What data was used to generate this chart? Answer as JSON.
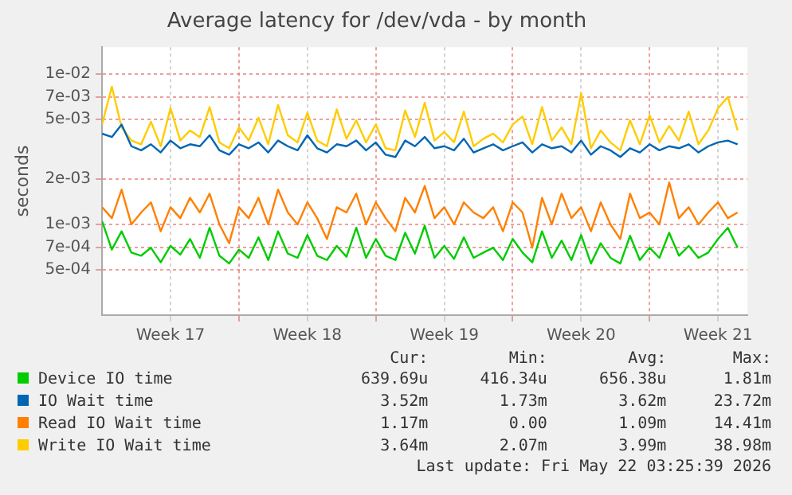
{
  "chart_data": {
    "type": "line",
    "title": "Average latency for /dev/vda - by month",
    "ylabel": "seconds",
    "x": [
      "2026-04-20T00:00",
      "2026-04-20T12:00",
      "2026-04-21T00:00",
      "2026-04-21T12:00",
      "2026-04-22T00:00",
      "2026-04-22T12:00",
      "2026-04-23T00:00",
      "2026-04-23T12:00",
      "2026-04-24T00:00",
      "2026-04-24T12:00",
      "2026-04-25T00:00",
      "2026-04-25T12:00",
      "2026-04-26T00:00",
      "2026-04-26T12:00",
      "2026-04-27T00:00",
      "2026-04-27T12:00",
      "2026-04-28T00:00",
      "2026-04-28T12:00",
      "2026-04-29T00:00",
      "2026-04-29T12:00",
      "2026-04-30T00:00",
      "2026-04-30T12:00",
      "2026-05-01T00:00",
      "2026-05-01T12:00",
      "2026-05-02T00:00",
      "2026-05-02T12:00",
      "2026-05-03T00:00",
      "2026-05-03T12:00",
      "2026-05-04T00:00",
      "2026-05-04T12:00",
      "2026-05-05T00:00",
      "2026-05-05T12:00",
      "2026-05-06T00:00",
      "2026-05-06T12:00",
      "2026-05-07T00:00",
      "2026-05-07T12:00",
      "2026-05-08T00:00",
      "2026-05-08T12:00",
      "2026-05-09T00:00",
      "2026-05-09T12:00",
      "2026-05-10T00:00",
      "2026-05-10T12:00",
      "2026-05-11T00:00",
      "2026-05-11T12:00",
      "2026-05-12T00:00",
      "2026-05-12T12:00",
      "2026-05-13T00:00",
      "2026-05-13T12:00",
      "2026-05-14T00:00",
      "2026-05-14T12:00",
      "2026-05-15T00:00",
      "2026-05-15T12:00",
      "2026-05-16T00:00",
      "2026-05-16T12:00",
      "2026-05-17T00:00",
      "2026-05-17T12:00",
      "2026-05-18T00:00",
      "2026-05-18T12:00",
      "2026-05-19T00:00",
      "2026-05-19T12:00",
      "2026-05-20T00:00",
      "2026-05-20T12:00",
      "2026-05-21T00:00",
      "2026-05-21T12:00",
      "2026-05-22T00:00",
      "2026-05-22T12:00"
    ],
    "series": [
      {
        "name": "Device IO time",
        "color": "#00cc00",
        "values": [
          0.00105,
          0.00068,
          0.0009,
          0.00065,
          0.00062,
          0.0007,
          0.00056,
          0.00072,
          0.00063,
          0.0008,
          0.0006,
          0.00095,
          0.00062,
          0.00055,
          0.00068,
          0.0006,
          0.00082,
          0.00058,
          0.0009,
          0.00064,
          0.0006,
          0.00085,
          0.00062,
          0.00058,
          0.00072,
          0.00061,
          0.00095,
          0.0006,
          0.0008,
          0.00062,
          0.00058,
          0.00088,
          0.00064,
          0.00098,
          0.0006,
          0.00072,
          0.00059,
          0.00082,
          0.0006,
          0.00065,
          0.0007,
          0.00058,
          0.0008,
          0.00065,
          0.00056,
          0.0009,
          0.0006,
          0.00078,
          0.00058,
          0.00085,
          0.00055,
          0.00075,
          0.0006,
          0.00055,
          0.00084,
          0.00058,
          0.0007,
          0.0006,
          0.00088,
          0.00062,
          0.00072,
          0.0006,
          0.00065,
          0.0008,
          0.00095,
          0.0007
        ]
      },
      {
        "name": "IO Wait time",
        "color": "#0066b3",
        "values": [
          0.004,
          0.0038,
          0.0046,
          0.0033,
          0.0031,
          0.0034,
          0.003,
          0.0036,
          0.0032,
          0.0034,
          0.0033,
          0.0039,
          0.0031,
          0.0029,
          0.0034,
          0.0032,
          0.0035,
          0.003,
          0.0036,
          0.0033,
          0.0031,
          0.0039,
          0.0032,
          0.003,
          0.0034,
          0.0033,
          0.0036,
          0.0031,
          0.0035,
          0.0029,
          0.0028,
          0.0036,
          0.0033,
          0.0038,
          0.0032,
          0.0033,
          0.0031,
          0.0037,
          0.003,
          0.0032,
          0.0034,
          0.0031,
          0.0033,
          0.0035,
          0.003,
          0.0034,
          0.0032,
          0.0033,
          0.003,
          0.0036,
          0.0029,
          0.0033,
          0.0031,
          0.0028,
          0.0032,
          0.003,
          0.0034,
          0.0031,
          0.0033,
          0.0032,
          0.0034,
          0.003,
          0.0033,
          0.0035,
          0.0036,
          0.0034
        ]
      },
      {
        "name": "Read IO Wait time",
        "color": "#ff8000",
        "values": [
          0.0013,
          0.0011,
          0.0017,
          0.001,
          0.0012,
          0.0014,
          0.0009,
          0.0013,
          0.0011,
          0.0015,
          0.0012,
          0.0016,
          0.001,
          0.00075,
          0.0013,
          0.0011,
          0.0015,
          0.001,
          0.0017,
          0.0012,
          0.001,
          0.0014,
          0.0011,
          0.0008,
          0.0013,
          0.0012,
          0.0016,
          0.001,
          0.0014,
          0.0011,
          0.0009,
          0.0015,
          0.0012,
          0.0018,
          0.0011,
          0.0013,
          0.001,
          0.0014,
          0.0012,
          0.0011,
          0.0013,
          0.0009,
          0.0014,
          0.0012,
          0.0007,
          0.0015,
          0.001,
          0.0016,
          0.0011,
          0.0013,
          0.0009,
          0.0014,
          0.001,
          0.0008,
          0.0016,
          0.0011,
          0.0012,
          0.001,
          0.0019,
          0.0011,
          0.0013,
          0.001,
          0.0012,
          0.0014,
          0.0011,
          0.0012
        ]
      },
      {
        "name": "Write IO Wait time",
        "color": "#ffcc00",
        "values": [
          0.0046,
          0.0082,
          0.0044,
          0.0036,
          0.0034,
          0.0048,
          0.0033,
          0.0059,
          0.0036,
          0.0042,
          0.0038,
          0.006,
          0.0035,
          0.0032,
          0.0044,
          0.0036,
          0.0051,
          0.0034,
          0.0062,
          0.0039,
          0.0035,
          0.0055,
          0.0036,
          0.0033,
          0.0058,
          0.0037,
          0.0049,
          0.0035,
          0.0046,
          0.0032,
          0.0031,
          0.0057,
          0.0038,
          0.0064,
          0.0036,
          0.0041,
          0.0035,
          0.0056,
          0.0033,
          0.0037,
          0.004,
          0.0035,
          0.0046,
          0.0052,
          0.0034,
          0.006,
          0.0036,
          0.0044,
          0.0034,
          0.0074,
          0.0032,
          0.0042,
          0.0035,
          0.0031,
          0.0049,
          0.0034,
          0.0053,
          0.0035,
          0.0045,
          0.0036,
          0.0056,
          0.0034,
          0.0042,
          0.0059,
          0.007,
          0.0042
        ]
      }
    ],
    "log": "y",
    "xlim": [
      "2026-04-20T00:00",
      "2026-05-23T00:00"
    ],
    "xticks": [
      {
        "value": "2026-04-23T12:00",
        "label": "Week 17"
      },
      {
        "value": "2026-04-27T00:00",
        "label": null
      },
      {
        "value": "2026-04-30T12:00",
        "label": "Week 18"
      },
      {
        "value": "2026-05-04T00:00",
        "label": null
      },
      {
        "value": "2026-05-07T12:00",
        "label": "Week 19"
      },
      {
        "value": "2026-05-11T00:00",
        "label": null
      },
      {
        "value": "2026-05-14T12:00",
        "label": "Week 20"
      },
      {
        "value": "2026-05-18T00:00",
        "label": null
      },
      {
        "value": "2026-05-21T12:00",
        "label": "Week 21"
      }
    ],
    "ylim": [
      0.00025,
      0.015
    ],
    "yticks": [
      {
        "value": 0.0005,
        "label": "5e-04"
      },
      {
        "value": 0.0007,
        "label": "7e-04"
      },
      {
        "value": 0.001,
        "label": "1e-03"
      },
      {
        "value": 0.002,
        "label": "2e-03"
      },
      {
        "value": 0.005,
        "label": "5e-03"
      },
      {
        "value": 0.007,
        "label": "7e-03"
      },
      {
        "value": 0.01,
        "label": "1e-02"
      }
    ],
    "grid": true,
    "legend": "bottom",
    "marker": "none",
    "line_style": "solid",
    "annotations": [
      "Cur:",
      "Min:",
      "Avg:",
      "Max:",
      "639.69u",
      "416.34u",
      "656.38u",
      "1.81m",
      "3.52m",
      "1.73m",
      "3.62m",
      "23.72m",
      "1.17m",
      "0.00",
      "1.09m",
      "14.41m",
      "3.64m",
      "2.07m",
      "3.99m",
      "38.98m",
      "Last update: Fri May 22 03:25:39 2026"
    ]
  }
}
